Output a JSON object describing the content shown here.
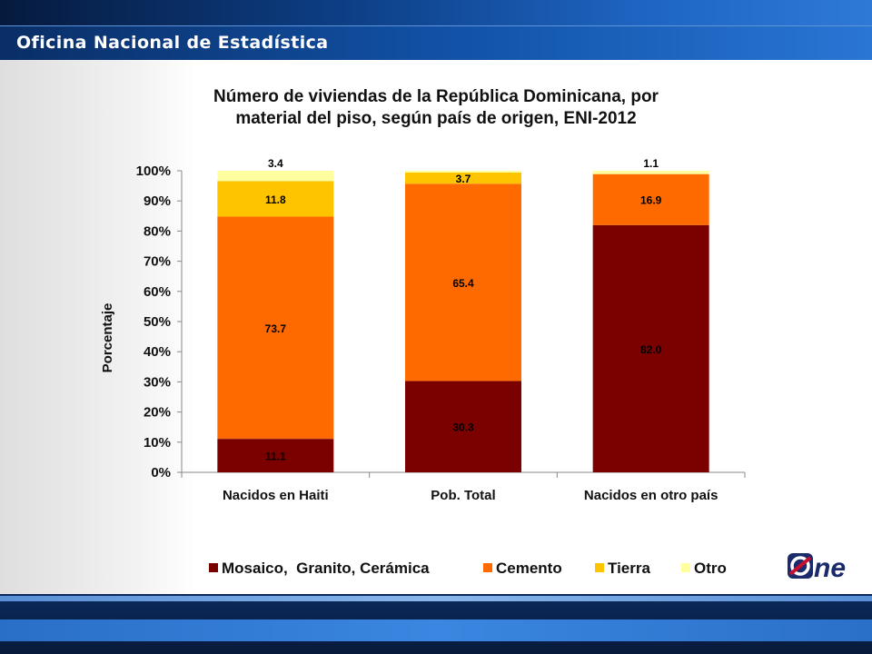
{
  "header": {
    "title": "Oficina Nacional de Estadística"
  },
  "logo": {
    "icon": "one-logo-icon",
    "text": "ne",
    "colors": [
      "#c8102e",
      "#1b2a6b"
    ]
  },
  "chart_data": {
    "type": "bar",
    "stacked": true,
    "title": "Número de viviendas de la República Dominicana, por material del piso, según país de origen, ENI-2012",
    "title_lines": [
      "Número de viviendas de la República Dominicana, por",
      "material del piso, según país de origen, ENI-2012"
    ],
    "xlabel": "",
    "ylabel": "Porcentaje",
    "ylim": [
      0,
      100
    ],
    "yticks": [
      "0%",
      "10%",
      "20%",
      "30%",
      "40%",
      "50%",
      "60%",
      "70%",
      "80%",
      "90%",
      "100%"
    ],
    "categories": [
      "Nacidos en Haiti",
      "Pob. Total",
      "Nacidos en otro país"
    ],
    "series": [
      {
        "name": "Mosaico,  Granito, Cerámica",
        "color": "#7b0000",
        "label_color": "#000000",
        "values": [
          11.1,
          30.3,
          82.0
        ],
        "labels": [
          "11.1",
          "30.3",
          "82.0"
        ]
      },
      {
        "name": "Cemento",
        "color": "#ff6a00",
        "label_color": "#000000",
        "values": [
          73.7,
          65.4,
          16.9
        ],
        "labels": [
          "73.7",
          "65.4",
          "16.9"
        ]
      },
      {
        "name": "Tierra",
        "color": "#ffc400",
        "label_color": "#000000",
        "values": [
          11.8,
          3.7,
          0
        ],
        "labels": [
          "11.8",
          "3.7",
          ""
        ]
      },
      {
        "name": "Otro",
        "color": "#ffffa0",
        "label_color": "#000000",
        "values": [
          3.4,
          0.6,
          1.1
        ],
        "labels": [
          "3.4",
          "",
          "1.1"
        ]
      }
    ],
    "legend_position": "bottom",
    "grid": false
  }
}
